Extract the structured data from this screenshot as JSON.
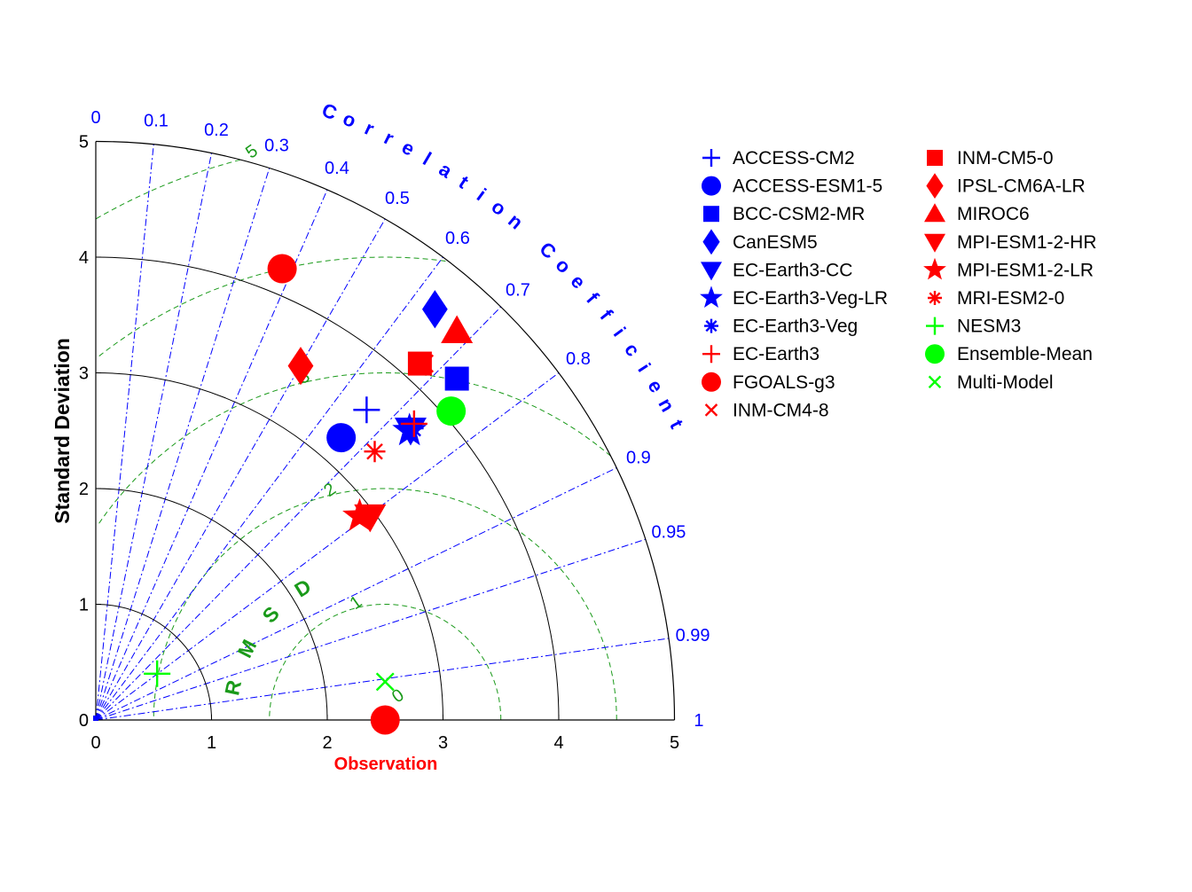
{
  "chart_data": {
    "type": "taylor-diagram",
    "ylabel": "Standard Deviation",
    "xlabel": "Observation",
    "corr_label": "Correlation Coefficient",
    "rmsd_label": "RMSD",
    "observation_std": 2.5,
    "std_range": [
      0,
      5
    ],
    "std_ticks": [
      "0",
      "1",
      "2",
      "3",
      "4",
      "5"
    ],
    "corr_ticks": [
      {
        "label": "0",
        "value": 0
      },
      {
        "label": "0.1",
        "value": 0.1
      },
      {
        "label": "0.2",
        "value": 0.2
      },
      {
        "label": "0.3",
        "value": 0.3
      },
      {
        "label": "0.4",
        "value": 0.4
      },
      {
        "label": "0.5",
        "value": 0.5
      },
      {
        "label": "0.6",
        "value": 0.6
      },
      {
        "label": "0.7",
        "value": 0.7
      },
      {
        "label": "0.8",
        "value": 0.8
      },
      {
        "label": "0.9",
        "value": 0.9
      },
      {
        "label": "0.95",
        "value": 0.95
      },
      {
        "label": "0.99",
        "value": 0.99
      },
      {
        "label": "1",
        "value": 1
      }
    ],
    "rmsd_ticks": [
      "0",
      "1",
      "2",
      "3",
      "4",
      "5"
    ],
    "legend_position": "right",
    "series": [
      {
        "name": "ACCESS-CM2",
        "marker": "plus",
        "color": "#0000ff",
        "x": 2.34,
        "y": 2.68
      },
      {
        "name": "ACCESS-ESM1-5",
        "marker": "circle",
        "color": "#0000ff",
        "x": 2.12,
        "y": 2.44
      },
      {
        "name": "BCC-CSM2-MR",
        "marker": "square",
        "color": "#0000ff",
        "x": 3.12,
        "y": 2.95
      },
      {
        "name": "CanESM5",
        "marker": "diamond",
        "color": "#0000ff",
        "x": 2.93,
        "y": 3.55
      },
      {
        "name": "EC-Earth3-CC",
        "marker": "triangle-down",
        "color": "#0000ff",
        "x": 2.72,
        "y": 2.51
      },
      {
        "name": "EC-Earth3-Veg-LR",
        "marker": "star",
        "color": "#0000ff",
        "x": 2.71,
        "y": 2.5
      },
      {
        "name": "EC-Earth3-Veg",
        "marker": "asterisk",
        "color": "#0000ff",
        "x": 2.74,
        "y": 2.52
      },
      {
        "name": "EC-Earth3",
        "marker": "plus",
        "color": "#ff0000",
        "x": 2.75,
        "y": 2.56
      },
      {
        "name": "FGOALS-g3",
        "marker": "circle",
        "color": "#ff0000",
        "x": 1.61,
        "y": 3.9
      },
      {
        "name": "INM-CM4-8",
        "marker": "x",
        "color": "#ff0000",
        "x": 2.84,
        "y": 3.08
      },
      {
        "name": "INM-CM5-0",
        "marker": "square",
        "color": "#ff0000",
        "x": 2.8,
        "y": 3.08
      },
      {
        "name": "IPSL-CM6A-LR",
        "marker": "diamond",
        "color": "#ff0000",
        "x": 1.77,
        "y": 3.06
      },
      {
        "name": "MIROC6",
        "marker": "triangle-up",
        "color": "#ff0000",
        "x": 3.12,
        "y": 3.36
      },
      {
        "name": "MPI-ESM1-2-HR",
        "marker": "triangle-down",
        "color": "#ff0000",
        "x": 2.37,
        "y": 1.76
      },
      {
        "name": "MPI-ESM1-2-LR",
        "marker": "star",
        "color": "#ff0000",
        "x": 2.28,
        "y": 1.76
      },
      {
        "name": "MRI-ESM2-0",
        "marker": "asterisk",
        "color": "#ff0000",
        "x": 2.41,
        "y": 2.32
      },
      {
        "name": "NESM3",
        "marker": "plus",
        "color": "#00ff00",
        "x": 0.53,
        "y": 0.4
      },
      {
        "name": "Ensemble-Mean",
        "marker": "circle",
        "color": "#00ff00",
        "x": 3.07,
        "y": 2.67
      },
      {
        "name": "Multi-Model",
        "marker": "x",
        "color": "#00ff00",
        "x": 2.5,
        "y": 0.33
      }
    ],
    "reference_point": {
      "marker": "circle",
      "color": "#ff0000",
      "x": 2.5,
      "y": 0
    }
  },
  "colors": {
    "std_arcs": "#000000",
    "corr_lines": "#0000ff",
    "rmsd_arcs": "#1a9a1a",
    "observation_label": "#ff0000"
  }
}
